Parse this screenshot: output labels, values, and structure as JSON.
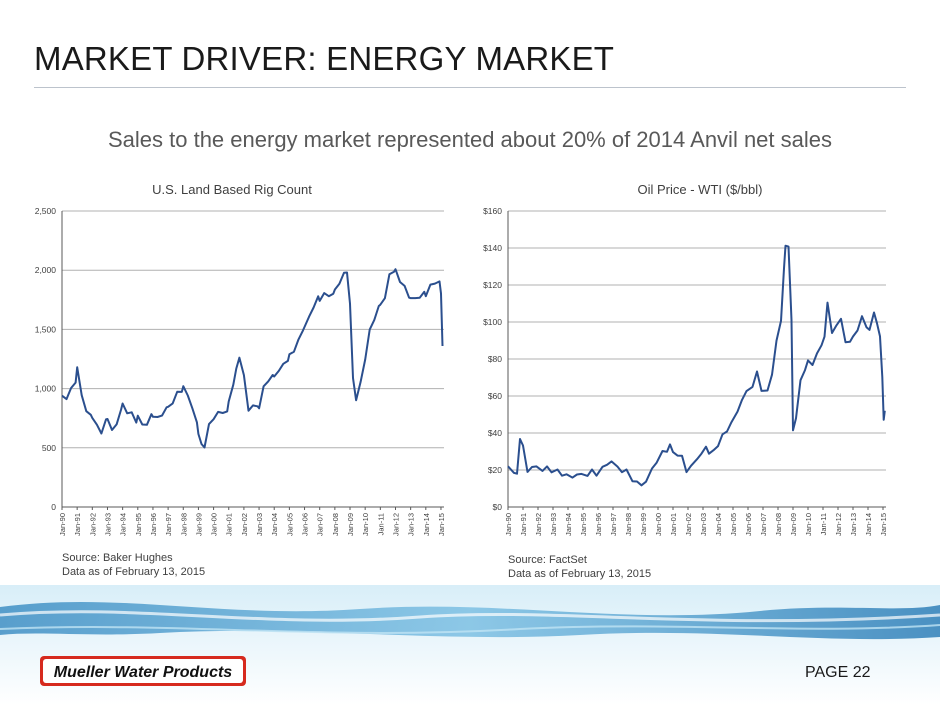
{
  "slide": {
    "title": "MARKET DRIVER: ENERGY MARKET",
    "subtitle": "Sales to the energy market represented about 20% of 2014 Anvil net sales",
    "page_label": "PAGE 22",
    "logo_text": "Mueller Water Products"
  },
  "colors": {
    "series": "#2b4f8e",
    "grid": "#b0b0b0",
    "axis": "#595959",
    "logo_red": "#d62a1e"
  },
  "chart_data": [
    {
      "type": "line",
      "title": "U.S. Land Based Rig Count",
      "ylim": [
        0,
        2500
      ],
      "yticks": [
        0,
        500,
        1000,
        1500,
        2000,
        2500
      ],
      "ytick_labels": [
        "0",
        "500",
        "1,000",
        "1,500",
        "2,000",
        "2,500"
      ],
      "xtick_labels": [
        "Jan-90",
        "Jan-91",
        "Jan-92",
        "Jan-93",
        "Jan-94",
        "Jan-95",
        "Jan-96",
        "Jan-97",
        "Jan-98",
        "Jan-99",
        "Jan-00",
        "Jan-01",
        "Jan-02",
        "Jan-03",
        "Jan-04",
        "Jan-05",
        "Jan-06",
        "Jan-07",
        "Jan-08",
        "Jan-09",
        "Jan-10",
        "Jan-11",
        "Jan-12",
        "Jan-13",
        "Jan-14",
        "Jan-15"
      ],
      "series": [
        {
          "x": [
            1990.0,
            1990.3,
            1990.6,
            1990.9,
            1991.0,
            1991.3,
            1991.6,
            1991.9,
            1992.0,
            1992.3,
            1992.6,
            1992.9,
            1993.0,
            1993.3,
            1993.6,
            1993.9,
            1994.0,
            1994.3,
            1994.6,
            1994.9,
            1995.0,
            1995.3,
            1995.6,
            1995.9,
            1996.0,
            1996.3,
            1996.6,
            1996.9,
            1997.0,
            1997.3,
            1997.6,
            1997.9,
            1998.0,
            1998.3,
            1998.6,
            1998.9,
            1999.0,
            1999.2,
            1999.4,
            1999.7,
            2000.0,
            2000.3,
            2000.6,
            2000.9,
            2001.0,
            2001.3,
            2001.5,
            2001.7,
            2002.0,
            2002.3,
            2002.6,
            2002.9,
            2003.0,
            2003.3,
            2003.6,
            2003.9,
            2004.0,
            2004.3,
            2004.6,
            2004.9,
            2005.0,
            2005.3,
            2005.6,
            2005.9,
            2006.0,
            2006.3,
            2006.6,
            2006.9,
            2007.0,
            2007.3,
            2007.6,
            2007.9,
            2008.0,
            2008.3,
            2008.6,
            2008.8,
            2009.0,
            2009.2,
            2009.4,
            2009.7,
            2010.0,
            2010.3,
            2010.6,
            2010.9,
            2011.0,
            2011.3,
            2011.6,
            2011.9,
            2012.0,
            2012.3,
            2012.6,
            2012.9,
            2013.0,
            2013.3,
            2013.6,
            2013.9,
            2014.0,
            2014.3,
            2014.6,
            2014.9,
            2015.0,
            2015.1
          ],
          "y": [
            940,
            920,
            990,
            1070,
            1160,
            960,
            800,
            780,
            760,
            680,
            640,
            720,
            760,
            640,
            700,
            830,
            860,
            810,
            780,
            730,
            760,
            700,
            700,
            770,
            780,
            740,
            790,
            830,
            850,
            880,
            960,
            990,
            1000,
            960,
            820,
            720,
            620,
            520,
            520,
            680,
            760,
            790,
            800,
            810,
            880,
            1050,
            1150,
            1280,
            1100,
            820,
            860,
            840,
            850,
            1000,
            1080,
            1100,
            1110,
            1150,
            1200,
            1250,
            1270,
            1330,
            1400,
            1500,
            1520,
            1600,
            1700,
            1760,
            1760,
            1790,
            1790,
            1800,
            1830,
            1900,
            1960,
            2000,
            1700,
            1100,
            900,
            1050,
            1260,
            1480,
            1600,
            1680,
            1720,
            1760,
            1960,
            2000,
            1990,
            1920,
            1850,
            1780,
            1760,
            1760,
            1780,
            1800,
            1800,
            1860,
            1900,
            1900,
            1800,
            1360
          ]
        }
      ]
    },
    {
      "type": "line",
      "title": "Oil Price - WTI ($/bbl)",
      "ylim": [
        0,
        160
      ],
      "yticks": [
        0,
        20,
        40,
        60,
        80,
        100,
        120,
        140,
        160
      ],
      "ytick_labels": [
        "$0",
        "$20",
        "$40",
        "$60",
        "$80",
        "$100",
        "$120",
        "$140",
        "$160"
      ],
      "xtick_labels": [
        "Jan-90",
        "Jan-91",
        "Jan-92",
        "Jan-93",
        "Jan-94",
        "Jan-95",
        "Jan-96",
        "Jan-97",
        "Jan-98",
        "Jan-99",
        "Jan-00",
        "Jan-01",
        "Jan-02",
        "Jan-03",
        "Jan-04",
        "Jan-05",
        "Jan-06",
        "Jan-07",
        "Jan-08",
        "Jan-09",
        "Jan-10",
        "Jan-11",
        "Jan-12",
        "Jan-13",
        "Jan-14",
        "Jan-15"
      ],
      "series": [
        {
          "x": [
            1990.0,
            1990.4,
            1990.6,
            1990.8,
            1991.0,
            1991.3,
            1991.6,
            1991.9,
            1992.3,
            1992.6,
            1992.9,
            1993.3,
            1993.6,
            1993.9,
            1994.3,
            1994.6,
            1994.9,
            1995.3,
            1995.6,
            1995.9,
            1996.3,
            1996.6,
            1996.9,
            1997.3,
            1997.6,
            1997.9,
            1998.3,
            1998.6,
            1998.9,
            1999.2,
            1999.6,
            1999.9,
            2000.3,
            2000.6,
            2000.8,
            2001.0,
            2001.3,
            2001.6,
            2001.9,
            2002.2,
            2002.6,
            2002.9,
            2003.2,
            2003.4,
            2003.7,
            2004.0,
            2004.3,
            2004.6,
            2004.9,
            2005.3,
            2005.6,
            2005.9,
            2006.3,
            2006.6,
            2006.9,
            2007.3,
            2007.6,
            2007.9,
            2008.2,
            2008.4,
            2008.5,
            2008.7,
            2008.9,
            2009.0,
            2009.2,
            2009.5,
            2009.8,
            2010.0,
            2010.3,
            2010.6,
            2010.9,
            2011.1,
            2011.3,
            2011.6,
            2011.9,
            2012.2,
            2012.5,
            2012.8,
            2013.0,
            2013.3,
            2013.6,
            2013.9,
            2014.1,
            2014.4,
            2014.6,
            2014.8,
            2014.95,
            2015.05,
            2015.12
          ],
          "y": [
            22,
            19,
            17,
            38,
            32,
            20,
            21,
            22,
            20,
            21,
            20,
            19,
            18,
            17,
            16,
            18,
            17,
            18,
            19,
            18,
            21,
            23,
            25,
            21,
            20,
            19,
            15,
            13,
            12,
            14,
            20,
            25,
            29,
            31,
            33,
            30,
            28,
            27,
            20,
            21,
            27,
            28,
            33,
            29,
            30,
            34,
            38,
            42,
            45,
            52,
            58,
            62,
            66,
            72,
            64,
            62,
            72,
            90,
            100,
            130,
            140,
            142,
            100,
            42,
            48,
            68,
            75,
            78,
            78,
            82,
            88,
            92,
            110,
            95,
            97,
            103,
            88,
            90,
            92,
            95,
            104,
            96,
            97,
            104,
            100,
            92,
            70,
            48,
            52
          ]
        }
      ]
    }
  ],
  "left_chart_source": {
    "line1": "Source: Baker Hughes",
    "line2": "Data as of February 13, 2015"
  },
  "right_chart_source": {
    "line1": "Source: FactSet",
    "line2": "Data as of February 13, 2015"
  }
}
